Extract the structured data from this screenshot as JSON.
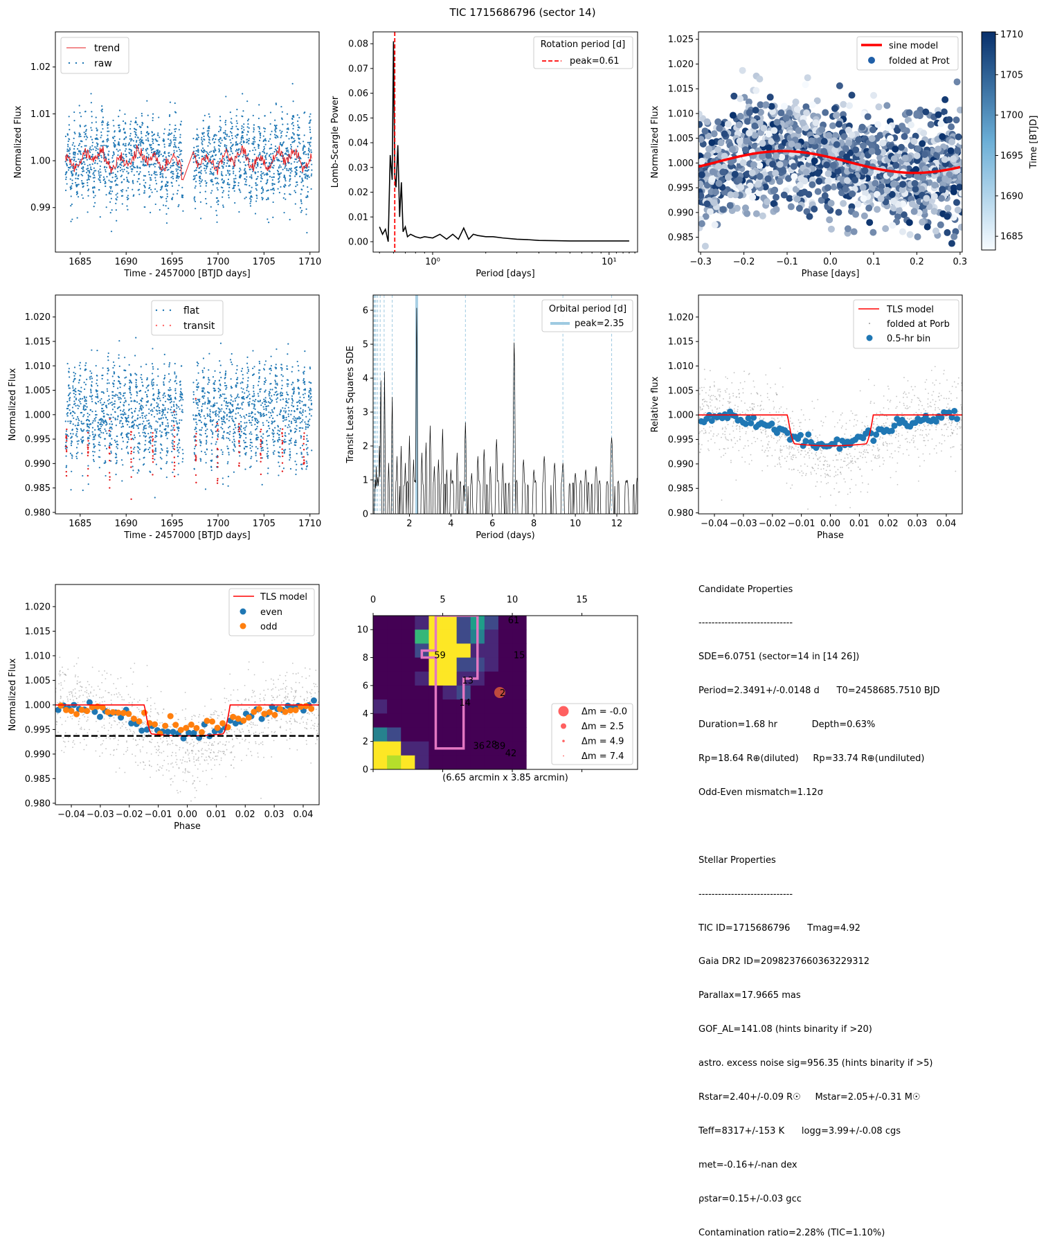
{
  "suptitle": "TIC 1715686796 (sector 14)",
  "colors": {
    "blue": "#1f77b4",
    "orange": "#ff7f0e",
    "red": "#ff0000",
    "grey": "#999999",
    "black": "#000000",
    "lightblue": "#9ecae1"
  },
  "chart_data": [
    {
      "id": "raw-lc",
      "type": "scatter",
      "xlabel": "Time - 2457000 [BTJD days]",
      "ylabel": "Normalized Flux",
      "xlim": [
        1682.3,
        1711.0
      ],
      "ylim": [
        0.9805,
        1.0275
      ],
      "xticks": [
        1685,
        1690,
        1695,
        1700,
        1705,
        1710
      ],
      "xticklabels": [
        "1685",
        "1690",
        "1695",
        "1700",
        "1705",
        "1710"
      ],
      "yticks": [
        0.99,
        1.0,
        1.01,
        1.02
      ],
      "yticklabels": [
        "0.99",
        "1.00",
        "1.01",
        "1.02"
      ],
      "legend": [
        "trend",
        "raw"
      ],
      "legend_loc": "upper left",
      "segments": [
        [
          1683.4,
          1696.2
        ],
        [
          1697.3,
          1710.2
        ]
      ],
      "gap": [
        1696.2,
        1697.3
      ],
      "raw_sigma": 0.0045,
      "trend_range": [
        0.996,
        1.004
      ]
    },
    {
      "id": "lomb-scargle",
      "type": "line",
      "xlabel": "Period [days]",
      "ylabel": "Lomb-Scargle Power",
      "xscale": "log",
      "xlim": [
        0.46,
        14.5
      ],
      "ylim": [
        -0.0042,
        0.0848
      ],
      "xticks": [
        1,
        10
      ],
      "xticklabels": [
        "10⁰",
        "10¹"
      ],
      "yticks": [
        0,
        0.01,
        0.02,
        0.03,
        0.04,
        0.05,
        0.06,
        0.07,
        0.08
      ],
      "yticklabels": [
        "0.00",
        "0.01",
        "0.02",
        "0.03",
        "0.04",
        "0.05",
        "0.06",
        "0.07",
        "0.08"
      ],
      "legend_title": "Rotation period [d]",
      "legend": [
        "peak=0.61"
      ],
      "legend_loc": "upper right",
      "peak": 0.61,
      "curve": {
        "x": [
          0.5,
          0.52,
          0.54,
          0.56,
          0.575,
          0.59,
          0.6,
          0.61,
          0.62,
          0.635,
          0.65,
          0.665,
          0.68,
          0.7,
          0.72,
          0.75,
          0.8,
          0.85,
          0.9,
          1.0,
          1.1,
          1.2,
          1.3,
          1.4,
          1.5,
          1.6,
          1.7,
          1.8,
          2.0,
          2.2,
          2.5,
          3.0,
          3.5,
          4,
          5,
          6,
          8,
          10,
          13
        ],
        "y": [
          0.006,
          0.003,
          0.005,
          0.0,
          0.035,
          0.025,
          0.081,
          0.027,
          0.022,
          0.039,
          0.01,
          0.024,
          0.004,
          0.006,
          0.002,
          0.003,
          0.002,
          0.0015,
          0.002,
          0.0015,
          0.003,
          0.001,
          0.003,
          0.001,
          0.0055,
          0.001,
          0.003,
          0.0025,
          0.002,
          0.002,
          0.0015,
          0.001,
          0.0008,
          0.0005,
          0.0004,
          0.0003,
          0.0003,
          0.0003,
          0.0003
        ]
      }
    },
    {
      "id": "folded-rotation",
      "type": "scatter",
      "xlabel": "Phase [days]",
      "ylabel": "Normalized Flux",
      "xlim": [
        -0.305,
        0.305
      ],
      "ylim": [
        0.982,
        1.0265
      ],
      "xticks": [
        -0.3,
        -0.2,
        -0.1,
        0.0,
        0.1,
        0.2,
        0.3
      ],
      "xticklabels": [
        "−0.3",
        "−0.2",
        "−0.1",
        "0.0",
        "0.1",
        "0.2",
        "0.3"
      ],
      "yticks": [
        0.985,
        0.99,
        0.995,
        1.0,
        1.005,
        1.01,
        1.015,
        1.02,
        1.025
      ],
      "yticklabels": [
        "0.985",
        "0.990",
        "0.995",
        "1.000",
        "1.005",
        "1.010",
        "1.015",
        "1.020",
        "1.025"
      ],
      "legend": [
        "sine model",
        "folded at Prot"
      ],
      "legend_loc": "upper right",
      "sine": {
        "amplitude": 0.0022,
        "offset": 1.0002,
        "peak_phase": -0.11,
        "period": 0.61
      },
      "colorbar": {
        "label": "Time [BTJD]",
        "vmin": 1683.3,
        "vmax": 1710.3,
        "ticks": [
          1685,
          1690,
          1695,
          1700,
          1705,
          1710
        ],
        "ticklabels": [
          "1685",
          "1690",
          "1695",
          "1700",
          "1705",
          "1710"
        ]
      }
    },
    {
      "id": "flat-lc",
      "type": "scatter",
      "xlabel": "Time - 2457000 [BTJD days]",
      "ylabel": "Normalized Flux",
      "xlim": [
        1682.3,
        1711.0
      ],
      "ylim": [
        0.9797,
        1.0245
      ],
      "xticks": [
        1685,
        1690,
        1695,
        1700,
        1705,
        1710
      ],
      "xticklabels": [
        "1685",
        "1690",
        "1695",
        "1700",
        "1705",
        "1710"
      ],
      "yticks": [
        0.98,
        0.985,
        0.99,
        0.995,
        1.0,
        1.005,
        1.01,
        1.015,
        1.02
      ],
      "yticklabels": [
        "0.980",
        "0.985",
        "0.990",
        "0.995",
        "1.000",
        "1.005",
        "1.010",
        "1.015",
        "1.020"
      ],
      "legend": [
        "flat",
        "transit"
      ],
      "legend_loc": "upper center",
      "transit_times": [
        1683.5,
        1685.85,
        1688.2,
        1690.55,
        1692.9,
        1695.25,
        1697.6,
        1699.95,
        1702.3,
        1704.65,
        1707.0,
        1709.35
      ]
    },
    {
      "id": "tls-periodogram",
      "type": "line",
      "xlabel": "Period (days)",
      "ylabel": "Transit Least Squares SDE",
      "xlim": [
        0.25,
        13.0
      ],
      "ylim": [
        0,
        6.45
      ],
      "xticks": [
        2,
        4,
        6,
        8,
        10,
        12
      ],
      "xticklabels": [
        "2",
        "4",
        "6",
        "8",
        "10",
        "12"
      ],
      "yticks": [
        0,
        1,
        2,
        3,
        4,
        5,
        6
      ],
      "yticklabels": [
        "0",
        "1",
        "2",
        "3",
        "4",
        "5",
        "6"
      ],
      "legend_title": "Orbital period [d]",
      "legend": [
        "peak=2.35"
      ],
      "legend_loc": "upper right",
      "peak": 2.35,
      "harmonics": [
        0.29,
        0.34,
        0.39,
        0.47,
        0.59,
        0.78,
        1.17,
        4.7,
        7.05,
        9.4,
        11.75
      ],
      "peaks": {
        "x": [
          0.35,
          0.4,
          0.48,
          0.55,
          0.62,
          0.8,
          1.0,
          1.17,
          1.4,
          1.6,
          1.8,
          2.0,
          2.2,
          2.35,
          2.6,
          2.8,
          3.0,
          3.2,
          3.4,
          3.6,
          3.8,
          4.0,
          4.3,
          4.7,
          5.0,
          5.3,
          5.6,
          5.9,
          6.2,
          6.5,
          7.05,
          7.5,
          8.0,
          8.5,
          9.0,
          9.4,
          10.0,
          10.5,
          11.0,
          11.75,
          12.5,
          13.0
        ],
        "y": [
          1.0,
          1.4,
          1.1,
          2.0,
          4.0,
          4.2,
          1.5,
          3.5,
          1.7,
          2.0,
          1.5,
          2.3,
          1.6,
          6.07,
          1.8,
          2.1,
          2.6,
          1.4,
          1.6,
          2.5,
          1.3,
          1.3,
          1.8,
          2.7,
          1.2,
          1.7,
          1.9,
          1.4,
          2.2,
          1.5,
          5.05,
          1.6,
          1.3,
          1.7,
          1.5,
          1.5,
          1.2,
          1.3,
          1.4,
          2.25,
          1.0,
          1.15
        ]
      }
    },
    {
      "id": "tls-fold",
      "type": "scatter",
      "xlabel": "Phase",
      "ylabel": "Relative flux",
      "xlim": [
        -0.0455,
        0.0455
      ],
      "ylim": [
        0.9798,
        1.0245
      ],
      "xticks": [
        -0.04,
        -0.03,
        -0.02,
        -0.01,
        0.0,
        0.01,
        0.02,
        0.03,
        0.04
      ],
      "xticklabels": [
        "−0.04",
        "−0.03",
        "−0.02",
        "−0.01",
        "0.00",
        "0.01",
        "0.02",
        "0.03",
        "0.04"
      ],
      "yticks": [
        0.98,
        0.985,
        0.99,
        0.995,
        1.0,
        1.005,
        1.01,
        1.015,
        1.02
      ],
      "yticklabels": [
        "0.980",
        "0.985",
        "0.990",
        "0.995",
        "1.000",
        "1.005",
        "1.010",
        "1.015",
        "1.020"
      ],
      "legend": [
        "TLS model",
        "folded at Porb",
        "0.5-hr bin"
      ],
      "legend_loc": "upper right",
      "model": {
        "half_duration": 0.0148,
        "ingress": 0.0025,
        "depth": 0.0063
      }
    },
    {
      "id": "odd-even",
      "type": "scatter",
      "xlabel": "Phase",
      "ylabel": "Normalized Flux",
      "xlim": [
        -0.0455,
        0.0455
      ],
      "ylim": [
        0.9797,
        1.0245
      ],
      "xticks": [
        -0.04,
        -0.03,
        -0.02,
        -0.01,
        0.0,
        0.01,
        0.02,
        0.03,
        0.04
      ],
      "xticklabels": [
        "−0.04",
        "−0.03",
        "−0.02",
        "−0.01",
        "0.00",
        "0.01",
        "0.02",
        "0.03",
        "0.04"
      ],
      "yticks": [
        0.98,
        0.985,
        0.99,
        0.995,
        1.0,
        1.005,
        1.01,
        1.015,
        1.02
      ],
      "yticklabels": [
        "0.980",
        "0.985",
        "0.990",
        "0.995",
        "1.000",
        "1.005",
        "1.010",
        "1.015",
        "1.020"
      ],
      "legend": [
        "TLS model",
        "even",
        "odd"
      ],
      "legend_loc": "upper right",
      "depth_line": 0.9937
    },
    {
      "id": "tpf",
      "type": "heatmap",
      "xlabel": "(6.65 arcmin x 3.85 arcmin)",
      "xlim": [
        0,
        19
      ],
      "ylim": [
        0,
        11
      ],
      "xticks": [
        0,
        5,
        10,
        15
      ],
      "xticklabels": [
        "0",
        "5",
        "10",
        "15"
      ],
      "yticks": [
        0,
        2,
        4,
        6,
        8,
        10
      ],
      "yticklabels": [
        "0",
        "2",
        "4",
        "6",
        "8",
        "10"
      ],
      "grid_cols": 11,
      "grid_rows": 11,
      "legend": [
        "Δm = -0.0",
        "Δm = 2.5",
        "Δm = 4.9",
        "Δm = 7.4"
      ],
      "legend_loc": "lower right",
      "stars": [
        {
          "id": "61",
          "x": 10.1,
          "y": 10.7
        },
        {
          "id": "15",
          "x": 10.5,
          "y": 8.2
        },
        {
          "id": "59",
          "x": 4.8,
          "y": 8.2
        },
        {
          "id": "13",
          "x": 6.8,
          "y": 6.4
        },
        {
          "id": "2",
          "x": 9.3,
          "y": 5.5
        },
        {
          "id": "14",
          "x": 6.6,
          "y": 4.8
        },
        {
          "id": "36",
          "x": 7.6,
          "y": 1.7
        },
        {
          "id": "28",
          "x": 8.5,
          "y": 1.8
        },
        {
          "id": "39",
          "x": 9.1,
          "y": 1.7
        },
        {
          "id": "42",
          "x": 9.9,
          "y": 1.2
        }
      ]
    }
  ],
  "candidate": {
    "heading": "Candidate Properties",
    "rule": "-----------------------------",
    "lines": [
      "SDE=6.0751 (sector=14 in [14 26])",
      "Period=2.3491+/-0.0148 d      T0=2458685.7510 BJD",
      "Duration=1.68 hr            Depth=0.63%",
      "Rp=18.64 R⊕(diluted)     Rp=33.74 R⊕(undiluted)",
      "Odd-Even mismatch=1.12σ"
    ]
  },
  "stellar": {
    "heading": "Stellar Properties",
    "rule": "-----------------------------",
    "lines": [
      "TIC ID=1715686796      Tmag=4.92",
      "Gaia DR2 ID=2098237660363229312",
      "Parallax=17.9665 mas",
      "GOF_AL=141.08 (hints binarity if >20)",
      "astro. excess noise sig=956.35 (hints binarity if >5)",
      "Rstar=2.40+/-0.09 R☉     Mstar=2.05+/-0.31 M☉",
      "Teff=8317+/-153 K      logg=3.99+/-0.08 cgs",
      "met=-0.16+/-nan dex",
      "ρstar=0.15+/-0.03 gcc",
      "Contamination ratio=2.28% (TIC=1.10%)"
    ]
  }
}
